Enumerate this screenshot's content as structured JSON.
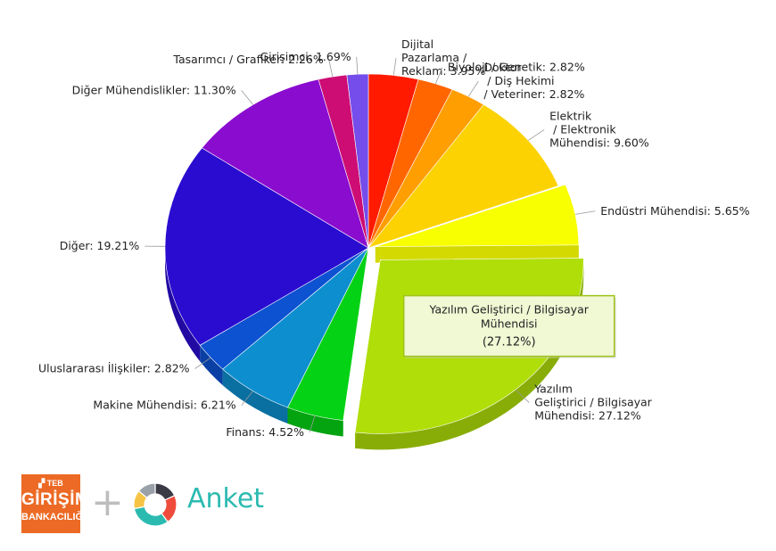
{
  "chart_data": {
    "type": "pie",
    "slices": [
      {
        "label": "Dijital\nPazarlama /\nReklam: 3.95%",
        "name": "Dijital Pazarlama / Reklam",
        "value": 3.95,
        "color": "#ff1a00"
      },
      {
        "label": "Biyoloji / Genetik: 2.82%",
        "name": "Biyoloji / Genetik",
        "value": 2.82,
        "color": "#ff6600"
      },
      {
        "label": "Doktor\n / Diş Hekimi\n/ Veteriner: 2.82%",
        "name": "Doktor / Diş Hekimi / Veteriner",
        "value": 2.82,
        "color": "#ff9e01"
      },
      {
        "label": "Elektrik\n / Elektronik\nMühendisi: 9.60%",
        "name": "Elektrik / Elektronik Mühendisi",
        "value": 9.6,
        "color": "#fcd202"
      },
      {
        "label": "Endüstri Mühendisi: 5.65%",
        "name": "Endüstri Mühendisi",
        "value": 5.65,
        "color": "#f8ff01"
      },
      {
        "label": "Yazılım\nGeliştirici / Bilgisayar\nMühendisi: 27.12%",
        "name": "Yazılım Geliştirici / Bilgisayar Mühendisi",
        "value": 27.12,
        "color": "#b0de09"
      },
      {
        "label": "Finans: 4.52%",
        "name": "Finans",
        "value": 4.52,
        "color": "#04d215"
      },
      {
        "label": "Makine Mühendisi: 6.21%",
        "name": "Makine Mühendisi",
        "value": 6.21,
        "color": "#0d8ecf"
      },
      {
        "label": "Uluslararası İlişkiler: 2.82%",
        "name": "Uluslararası İlişkiler",
        "value": 2.82,
        "color": "#0d52d1"
      },
      {
        "label": "Diğer: 19.21%",
        "name": "Diğer",
        "value": 19.21,
        "color": "#2a0cd0"
      },
      {
        "label": "Diğer Mühendislikler: 11.30%",
        "name": "Diğer Mühendislikler",
        "value": 11.3,
        "color": "#8a0ccf"
      },
      {
        "label": "Tasarımcı / Grafiker: 2.26%",
        "name": "Tasarımcı / Grafiker",
        "value": 2.26,
        "color": "#cd0d74"
      },
      {
        "label": "Girişimci: 1.69%",
        "name": "Girişimci",
        "value": 1.69,
        "color": "#754deb"
      }
    ],
    "pulled_slices": [
      "Endüstri Mühendisi",
      "Yazılım Geliştirici / Bilgisayar Mühendisi"
    ],
    "tooltip": {
      "line1": "Yazılım Geliştirici / Bilgisayar",
      "line2": "Mühendisi",
      "value": "(27.12%)"
    },
    "depth_3d": true
  },
  "branding": {
    "teb_top": "▞ TEB",
    "teb_mid": "GİRİŞİM",
    "teb_bot": "BANKACILIĞI",
    "plus": "+",
    "anket_text": "Anket",
    "anket_colors": [
      "#3a3a45",
      "#ef4b3c",
      "#2bbab0",
      "#f6c344",
      "#9aa0a8"
    ]
  }
}
